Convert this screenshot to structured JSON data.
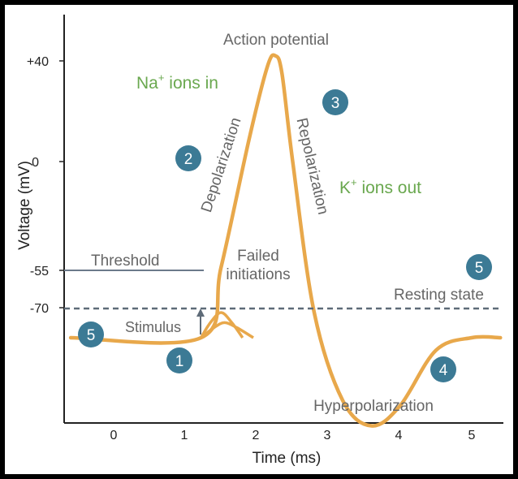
{
  "chart_data": {
    "type": "line",
    "title": "",
    "xlabel": "Time (ms)",
    "ylabel": "Voltage (mV)",
    "x_ticks": [
      "0",
      "1",
      "2",
      "3",
      "4",
      "5"
    ],
    "y_ticks": [
      "+40",
      "0",
      "-55",
      "-70"
    ],
    "series": [
      {
        "x": [
          -0.6,
          1.22,
          1.5,
          1.9,
          2.15,
          2.26,
          2.35,
          2.5,
          2.8,
          3.2,
          3.6,
          4.0,
          4.5,
          5.0,
          5.4
        ],
        "y": [
          -70,
          -70,
          -42,
          10,
          38,
          42,
          35,
          0,
          -60,
          -95,
          -105,
          -97,
          -75,
          -70,
          -70
        ]
      }
    ],
    "failed_initiations": [
      {
        "x": [
          1.22,
          1.35,
          1.5,
          1.65,
          1.8
        ],
        "y": [
          -70,
          -64,
          -60,
          -64,
          -70
        ]
      },
      {
        "x": [
          1.22,
          1.4,
          1.55,
          1.72,
          1.95
        ],
        "y": [
          -70,
          -66,
          -64,
          -66,
          -70
        ]
      }
    ],
    "reference_lines": {
      "threshold_mv": -55,
      "resting_mv": -70
    },
    "colors": {
      "curve": "#E8A84B",
      "label_green": "#6AA84F",
      "badge": "#3C7A95",
      "axis": "#222222",
      "text": "#666666"
    }
  },
  "labels": {
    "action_potential": "Action potential",
    "na_prefix": "Na",
    "na_sup": "+",
    "na_suffix": " ions in",
    "k_prefix": "K",
    "k_sup": "+",
    "k_suffix": " ions out",
    "depolarization": "Depolarization",
    "repolarization": "Repolarization",
    "threshold": "Threshold",
    "failed_line1": "Failed",
    "failed_line2": "initiations",
    "resting_state": "Resting state",
    "stimulus": "Stimulus",
    "hyperpolarization": "Hyperpolarization"
  },
  "badges": {
    "b1": "1",
    "b2": "2",
    "b3": "3",
    "b4": "4",
    "b5_left": "5",
    "b5_right": "5"
  }
}
